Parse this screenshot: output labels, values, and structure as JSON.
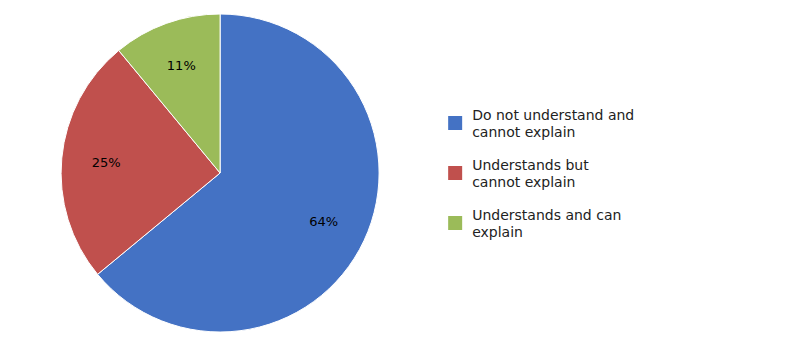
{
  "chart_data": {
    "type": "pie",
    "categories": [
      "Do not understand and\ncannot explain",
      "Understands but\ncannot explain",
      "Understands and can\nexplain"
    ],
    "values": [
      64,
      25,
      11
    ],
    "value_labels": [
      "64%",
      "25%",
      "11%"
    ],
    "data_labels": true,
    "colors": [
      "#4472C4",
      "#C0504D",
      "#9BBB59"
    ],
    "legend": "right"
  }
}
